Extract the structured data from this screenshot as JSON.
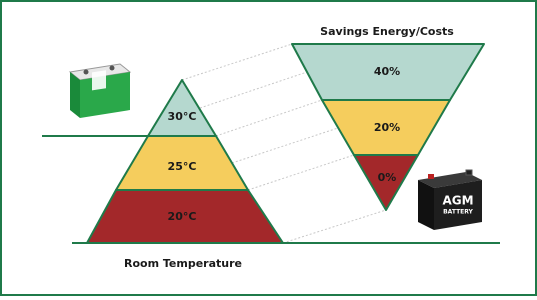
{
  "diagram": {
    "right_title": "Savings Energy/Costs",
    "left_caption": "Room Temperature",
    "temperatures": [
      "30°C",
      "25°C",
      "20°C"
    ],
    "savings": [
      "40%",
      "20%",
      "0%"
    ],
    "battery_label": {
      "brand": "AGM",
      "sub": "BATTERY"
    }
  }
}
